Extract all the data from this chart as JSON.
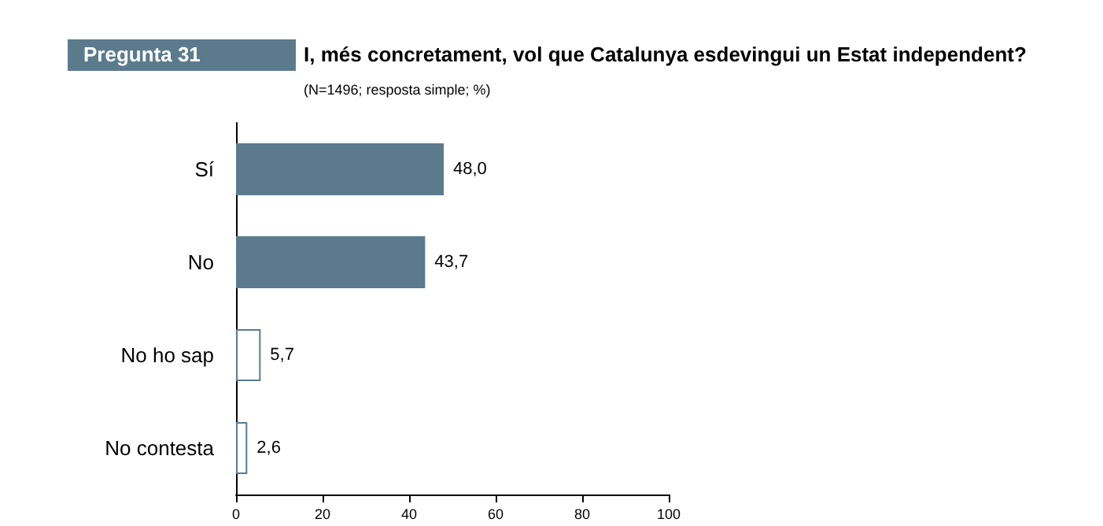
{
  "chart_data": {
    "type": "bar",
    "orientation": "horizontal",
    "title": "I, més concretament, vol que Catalunya esdevingui un Estat independent?",
    "subtitle": "(N=1496; resposta simple; %)",
    "annotations": [
      "Pregunta 31"
    ],
    "categories": [
      "Sí",
      "No",
      "No ho sap",
      "No contesta"
    ],
    "values": [
      48.0,
      43.7,
      5.7,
      2.6
    ],
    "colors": [
      "#5b7b8d",
      "#5b7b8d",
      "#ffffff",
      "#ffffff"
    ],
    "value_labels": [
      "48,0",
      "43,7",
      "5,7",
      "2,6"
    ],
    "xlim": [
      0,
      100
    ],
    "xticks": [
      0,
      20,
      40,
      60,
      80,
      100
    ]
  }
}
